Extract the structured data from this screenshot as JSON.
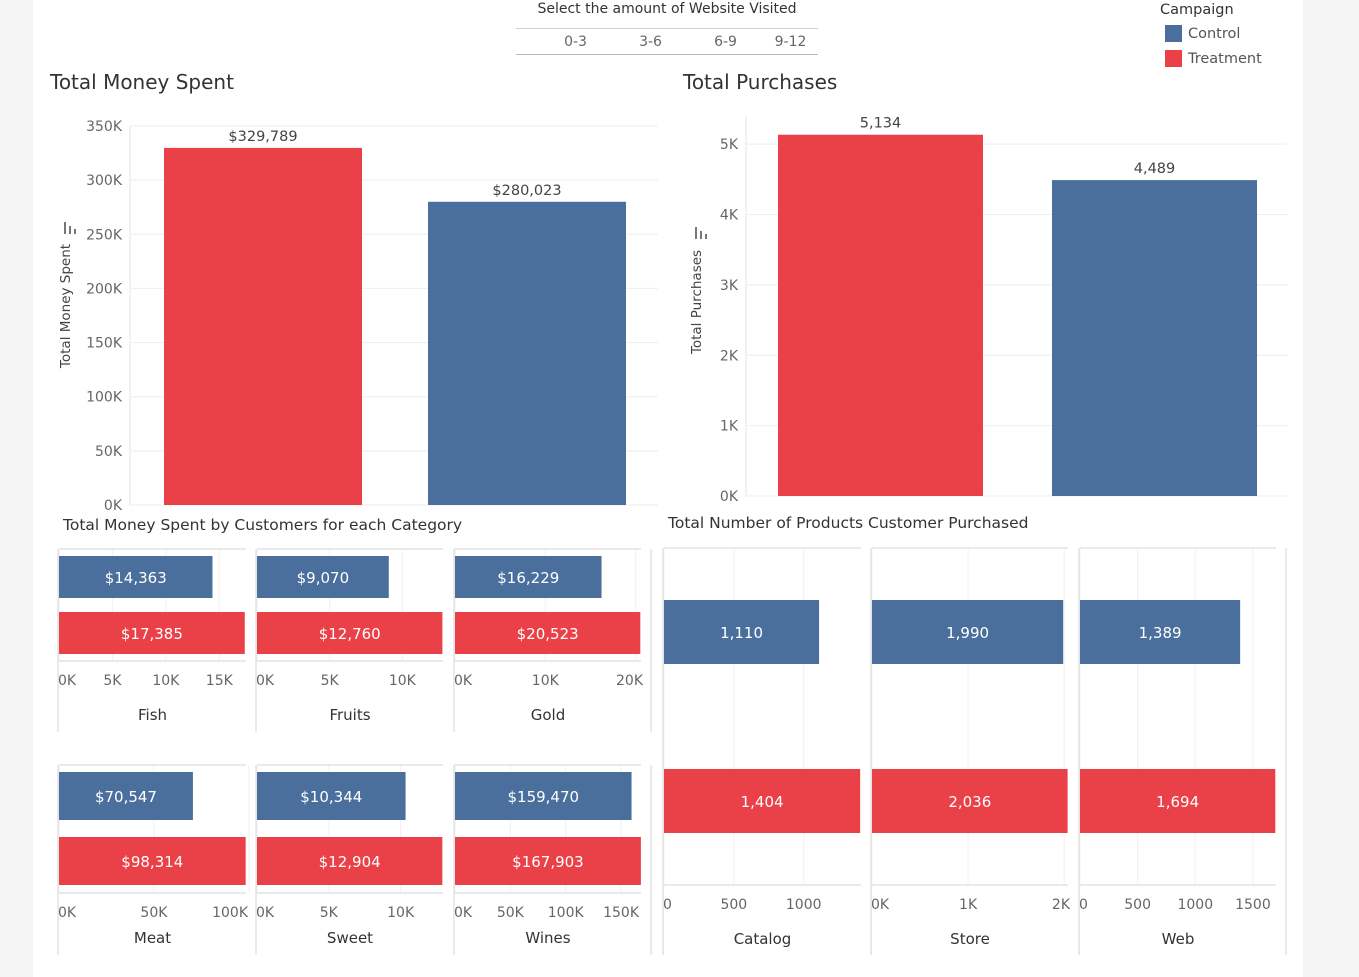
{
  "filter": {
    "label": "Select the amount of Website Visited",
    "options": [
      "0-3",
      "3-6",
      "6-9",
      "9-12"
    ]
  },
  "legend": {
    "title": "Campaign",
    "items": [
      {
        "label": "Control",
        "color": "#4a6f9c"
      },
      {
        "label": "Treatment",
        "color": "#ea4149"
      }
    ]
  },
  "colors": {
    "control": "#4a6f9c",
    "treatment": "#ea4149",
    "grid": "#eeeeee",
    "axis_text": "#666666"
  },
  "chart_data": [
    {
      "id": "money",
      "type": "bar",
      "title": "Total Money Spent",
      "ylabel": "Total Money Spent",
      "ylim": [
        0,
        350000
      ],
      "yticks": [
        0,
        50000,
        100000,
        150000,
        200000,
        250000,
        300000,
        350000
      ],
      "yticklabels": [
        "0K",
        "50K",
        "100K",
        "150K",
        "200K",
        "250K",
        "300K",
        "350K"
      ],
      "categories": [
        "Treatment",
        "Control"
      ],
      "values": [
        329789,
        280023
      ],
      "labels": [
        "$329,789",
        "$280,023"
      ]
    },
    {
      "id": "purchases",
      "type": "bar",
      "title": "Total Purchases",
      "ylabel": "Total Purchases",
      "ylim": [
        0,
        5400
      ],
      "yticks": [
        0,
        1000,
        2000,
        3000,
        4000,
        5000
      ],
      "yticklabels": [
        "0K",
        "1K",
        "2K",
        "3K",
        "4K",
        "5K"
      ],
      "categories": [
        "Treatment",
        "Control"
      ],
      "values": [
        5134,
        4489
      ],
      "labels": [
        "5,134",
        "4,489"
      ]
    },
    {
      "id": "category",
      "type": "bar",
      "title": "Total Money Spent by Customers for each Category",
      "orientation": "horizontal",
      "panels": [
        {
          "name": "Fish",
          "xlim": [
            0,
            17500
          ],
          "ticks": [
            0,
            5000,
            10000,
            15000
          ],
          "ticklabels": [
            "0K",
            "5K",
            "10K",
            "15K"
          ],
          "control": 14363,
          "treatment": 17385,
          "control_label": "$14,363",
          "treatment_label": "$17,385"
        },
        {
          "name": "Fruits",
          "xlim": [
            0,
            12800
          ],
          "ticks": [
            0,
            5000,
            10000
          ],
          "ticklabels": [
            "0K",
            "5K",
            "10K"
          ],
          "control": 9070,
          "treatment": 12760,
          "control_label": "$9,070",
          "treatment_label": "$12,760"
        },
        {
          "name": "Gold",
          "xlim": [
            0,
            20600
          ],
          "ticks": [
            0,
            10000,
            20000
          ],
          "ticklabels": [
            "0K",
            "10K",
            "20K"
          ],
          "control": 16229,
          "treatment": 20523,
          "control_label": "$16,229",
          "treatment_label": "$20,523"
        },
        {
          "name": "Meat",
          "xlim": [
            0,
            98500
          ],
          "ticks": [
            0,
            50000,
            100000
          ],
          "ticklabels": [
            "0K",
            "50K",
            "100K"
          ],
          "control": 70547,
          "treatment": 98314,
          "control_label": "$70,547",
          "treatment_label": "$98,314"
        },
        {
          "name": "Sweet",
          "xlim": [
            0,
            12950
          ],
          "ticks": [
            0,
            5000,
            10000
          ],
          "ticklabels": [
            "0K",
            "5K",
            "10K"
          ],
          "control": 10344,
          "treatment": 12904,
          "control_label": "$10,344",
          "treatment_label": "$12,904"
        },
        {
          "name": "Wines",
          "xlim": [
            0,
            168000
          ],
          "ticks": [
            0,
            50000,
            100000,
            150000
          ],
          "ticklabels": [
            "0K",
            "50K",
            "100K",
            "150K"
          ],
          "control": 159470,
          "treatment": 167903,
          "control_label": "$159,470",
          "treatment_label": "$167,903"
        }
      ]
    },
    {
      "id": "channels",
      "type": "bar",
      "title": "Total Number of Products Customer Purchased",
      "orientation": "horizontal",
      "panels": [
        {
          "name": "Catalog",
          "xlim": [
            0,
            1410
          ],
          "ticks": [
            0,
            500,
            1000
          ],
          "ticklabels": [
            "0",
            "500",
            "1000"
          ],
          "control": 1110,
          "treatment": 1404,
          "control_label": "1,110",
          "treatment_label": "1,404"
        },
        {
          "name": "Store",
          "xlim": [
            0,
            2040
          ],
          "ticks": [
            0,
            1000,
            2000
          ],
          "ticklabels": [
            "0K",
            "1K",
            "2K"
          ],
          "control": 1990,
          "treatment": 2036,
          "control_label": "1,990",
          "treatment_label": "2,036"
        },
        {
          "name": "Web",
          "xlim": [
            0,
            1700
          ],
          "ticks": [
            0,
            500,
            1000,
            1500
          ],
          "ticklabels": [
            "0",
            "500",
            "1000",
            "1500"
          ],
          "control": 1389,
          "treatment": 1694,
          "control_label": "1,389",
          "treatment_label": "1,694"
        }
      ]
    }
  ]
}
